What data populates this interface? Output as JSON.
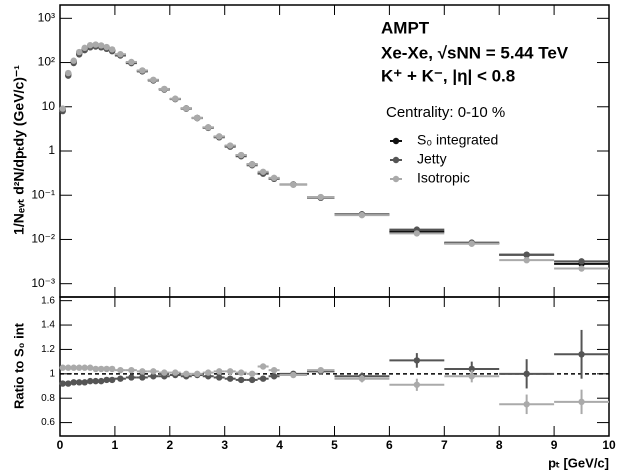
{
  "chart_data": [
    {
      "type": "scatter",
      "ylabel": "1/Nₑᵥₜ d²N/dpₜdy (GeV/c)⁻¹",
      "annotations": [
        "AMPT",
        "Xe-Xe, √sNN = 5.44 TeV",
        "K⁺ + K⁻, |η| < 0.8",
        "Centrality: 0-10 %"
      ],
      "legend_position": "upper right",
      "log_y": true,
      "xlim": [
        0,
        10
      ],
      "xticks": [
        0,
        1,
        2,
        3,
        4,
        5,
        6,
        7,
        8,
        9,
        10
      ],
      "ylim": [
        0.0005,
        2000
      ],
      "yticks": [
        {
          "value": 0.001,
          "label": "10⁻³"
        },
        {
          "value": 0.01,
          "label": "10⁻²"
        },
        {
          "value": 0.1,
          "label": "10⁻¹"
        },
        1,
        10,
        {
          "value": 100,
          "label": "10²"
        },
        {
          "value": 1000,
          "label": "10³"
        }
      ],
      "x": [
        0.05,
        0.15,
        0.25,
        0.35,
        0.45,
        0.55,
        0.65,
        0.75,
        0.85,
        0.95,
        1.1,
        1.3,
        1.5,
        1.7,
        1.9,
        2.1,
        2.3,
        2.5,
        2.7,
        2.9,
        3.1,
        3.3,
        3.5,
        3.7,
        3.9,
        4.25,
        4.75,
        5.5,
        6.5,
        7.5,
        8.5,
        9.5
      ],
      "xerr": [
        0.05,
        0.05,
        0.05,
        0.05,
        0.05,
        0.05,
        0.05,
        0.05,
        0.05,
        0.05,
        0.1,
        0.1,
        0.1,
        0.1,
        0.1,
        0.1,
        0.1,
        0.1,
        0.1,
        0.1,
        0.1,
        0.1,
        0.1,
        0.1,
        0.1,
        0.25,
        0.25,
        0.5,
        0.5,
        0.5,
        0.5,
        0.5
      ],
      "series": [
        {
          "name": "S₀ integrated",
          "color": "#111111",
          "values": [
            8.7,
            55,
            105,
            165,
            205,
            235,
            245,
            235,
            215,
            190,
            150,
            100,
            65,
            40,
            25,
            15,
            9.2,
            5.6,
            3.4,
            2.1,
            1.3,
            0.8,
            0.5,
            0.32,
            0.24,
            0.175,
            0.088,
            0.037,
            0.015,
            0.0082,
            0.0045,
            0.0028
          ]
        },
        {
          "name": "Jetty",
          "color": "#555555",
          "values": [
            8.0,
            50.6,
            97.7,
            153,
            191,
            221,
            230,
            221,
            204,
            180.5,
            144,
            97,
            63,
            39.2,
            24.5,
            14.9,
            9.0,
            5.54,
            3.33,
            2.04,
            1.25,
            0.76,
            0.475,
            0.307,
            0.235,
            0.175,
            0.0898,
            0.0363,
            0.0167,
            0.0085,
            0.0045,
            0.0032
          ]
        },
        {
          "name": "Isotropic",
          "color": "#aaaaaa",
          "values": [
            9.1,
            57.8,
            110,
            173,
            215,
            247,
            255,
            244,
            224,
            198,
            154.5,
            103,
            66.3,
            40.8,
            25.3,
            15.2,
            9.2,
            5.6,
            3.43,
            2.14,
            1.33,
            0.81,
            0.5,
            0.339,
            0.247,
            0.173,
            0.0906,
            0.0355,
            0.0137,
            0.008,
            0.0034,
            0.0022
          ]
        }
      ]
    },
    {
      "type": "scatter",
      "ylabel": "Ratio to S₀ int",
      "xlabel": "pₜ [GeV/c]",
      "log_y": false,
      "reference_line": 1,
      "xlim": [
        0,
        10
      ],
      "xticks": [
        0,
        1,
        2,
        3,
        4,
        5,
        6,
        7,
        8,
        9,
        10
      ],
      "ylim": [
        0.49,
        1.63
      ],
      "yticks": [
        0.6,
        0.8,
        1,
        1.2,
        1.4,
        1.6
      ],
      "x": [
        0.05,
        0.15,
        0.25,
        0.35,
        0.45,
        0.55,
        0.65,
        0.75,
        0.85,
        0.95,
        1.1,
        1.3,
        1.5,
        1.7,
        1.9,
        2.1,
        2.3,
        2.5,
        2.7,
        2.9,
        3.1,
        3.3,
        3.5,
        3.7,
        3.9,
        4.25,
        4.75,
        5.5,
        6.5,
        7.5,
        8.5,
        9.5
      ],
      "xerr": [
        0.05,
        0.05,
        0.05,
        0.05,
        0.05,
        0.05,
        0.05,
        0.05,
        0.05,
        0.05,
        0.1,
        0.1,
        0.1,
        0.1,
        0.1,
        0.1,
        0.1,
        0.1,
        0.1,
        0.1,
        0.1,
        0.1,
        0.1,
        0.1,
        0.1,
        0.25,
        0.25,
        0.5,
        0.5,
        0.5,
        0.5,
        0.5
      ],
      "series": [
        {
          "color": "#555555",
          "values": [
            0.92,
            0.92,
            0.93,
            0.93,
            0.93,
            0.94,
            0.94,
            0.94,
            0.95,
            0.95,
            0.96,
            0.97,
            0.97,
            0.98,
            0.98,
            0.99,
            0.98,
            0.99,
            0.98,
            0.97,
            0.96,
            0.95,
            0.95,
            0.96,
            0.98,
            1.0,
            1.02,
            0.98,
            1.11,
            1.04,
            1.0,
            1.16
          ],
          "yerr": [
            0.005,
            0.005,
            0.005,
            0.005,
            0.005,
            0.005,
            0.005,
            0.005,
            0.005,
            0.005,
            0.005,
            0.005,
            0.005,
            0.005,
            0.005,
            0.005,
            0.005,
            0.005,
            0.005,
            0.005,
            0.01,
            0.01,
            0.015,
            0.015,
            0.02,
            0.01,
            0.015,
            0.03,
            0.06,
            0.06,
            0.12,
            0.2
          ]
        },
        {
          "color": "#aaaaaa",
          "values": [
            1.05,
            1.05,
            1.05,
            1.05,
            1.05,
            1.05,
            1.04,
            1.04,
            1.04,
            1.04,
            1.03,
            1.03,
            1.02,
            1.02,
            1.01,
            1.01,
            1.0,
            1.0,
            1.01,
            1.02,
            1.02,
            1.01,
            1.0,
            1.06,
            1.03,
            0.99,
            1.03,
            0.96,
            0.91,
            0.98,
            0.75,
            0.77
          ],
          "yerr": [
            0.005,
            0.005,
            0.005,
            0.005,
            0.005,
            0.005,
            0.005,
            0.005,
            0.005,
            0.005,
            0.005,
            0.005,
            0.005,
            0.005,
            0.005,
            0.005,
            0.005,
            0.005,
            0.005,
            0.005,
            0.01,
            0.01,
            0.015,
            0.015,
            0.02,
            0.01,
            0.015,
            0.03,
            0.05,
            0.05,
            0.08,
            0.1
          ]
        }
      ]
    }
  ]
}
